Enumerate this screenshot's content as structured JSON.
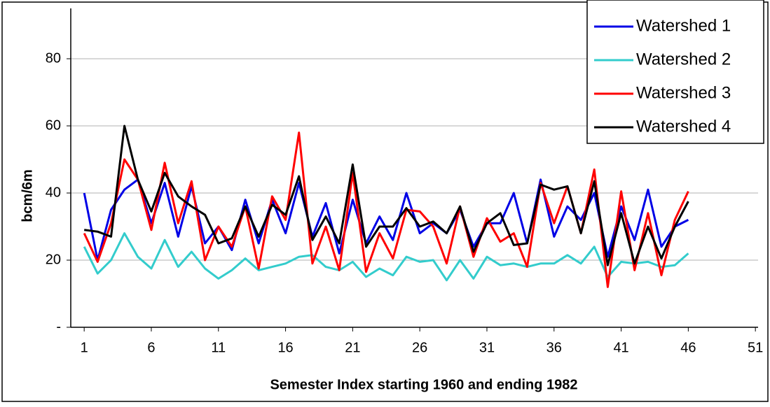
{
  "chart_data": {
    "type": "line",
    "xlabel": "Semester Index starting 1960 and ending 1982",
    "ylabel": "bcm/6m",
    "x": [
      1,
      2,
      3,
      4,
      5,
      6,
      7,
      8,
      9,
      10,
      11,
      12,
      13,
      14,
      15,
      16,
      17,
      18,
      19,
      20,
      21,
      22,
      23,
      24,
      25,
      26,
      27,
      28,
      29,
      30,
      31,
      32,
      33,
      34,
      35,
      36,
      37,
      38,
      39,
      40,
      41,
      42,
      43,
      44,
      45,
      46
    ],
    "series": [
      {
        "name": "Watershed 1",
        "color": "#0000e6",
        "values": [
          40,
          20,
          35,
          41,
          44,
          31,
          43,
          27,
          42,
          25,
          30,
          23,
          38,
          25,
          38,
          28,
          43,
          27,
          37,
          22,
          38,
          25,
          33,
          26,
          40,
          28,
          31,
          28,
          35,
          24,
          31,
          31,
          40,
          25,
          44,
          27,
          36,
          32,
          40,
          21,
          36,
          26,
          41,
          24,
          30,
          32
        ]
      },
      {
        "name": "Watershed 2",
        "color": "#33cccc",
        "values": [
          24,
          16,
          20,
          28,
          21,
          17.5,
          26,
          18,
          22.5,
          17.5,
          14.5,
          17,
          20.5,
          17,
          18,
          19,
          21,
          21.5,
          18,
          17,
          19.5,
          15,
          17.5,
          15.5,
          21,
          19.5,
          20,
          14,
          20,
          14.5,
          21,
          18.5,
          19,
          18,
          19,
          19,
          21.5,
          19,
          24,
          15,
          19.5,
          19,
          19.5,
          18,
          18.5,
          22
        ]
      },
      {
        "name": "Watershed 3",
        "color": "#ff0000",
        "values": [
          28,
          19.5,
          31,
          50,
          44,
          29,
          49,
          31,
          43.5,
          20,
          30,
          24,
          36,
          17.5,
          39,
          32,
          58,
          19,
          30,
          17,
          46,
          16.5,
          28,
          20.5,
          35,
          34.5,
          30,
          19,
          36,
          21,
          32.5,
          25.5,
          28,
          18,
          43,
          31,
          42,
          28,
          47,
          12,
          40.5,
          17,
          34,
          15.5,
          32,
          40.5
        ]
      },
      {
        "name": "Watershed 4",
        "color": "#000000",
        "values": [
          29,
          28.5,
          27,
          60,
          44,
          34.5,
          46,
          39,
          36,
          33.5,
          25,
          26.5,
          36,
          27,
          36.5,
          33.5,
          45,
          26,
          33,
          25,
          48.5,
          24,
          30,
          30,
          35.5,
          30,
          31.5,
          28,
          36,
          22.5,
          31,
          34,
          24.5,
          25,
          42.5,
          41,
          42,
          28,
          43.5,
          18.5,
          34,
          19,
          30,
          20.5,
          30,
          37.5
        ]
      }
    ],
    "xlim": [
      0,
      51.2
    ],
    "xticks": [
      1,
      6,
      11,
      16,
      21,
      26,
      31,
      36,
      41,
      46,
      51
    ],
    "ylim": [
      0,
      95
    ],
    "yticks": [
      {
        "value": 0,
        "label": "-"
      },
      20,
      40,
      60,
      80
    ],
    "grid": true,
    "legend": "upper right"
  }
}
